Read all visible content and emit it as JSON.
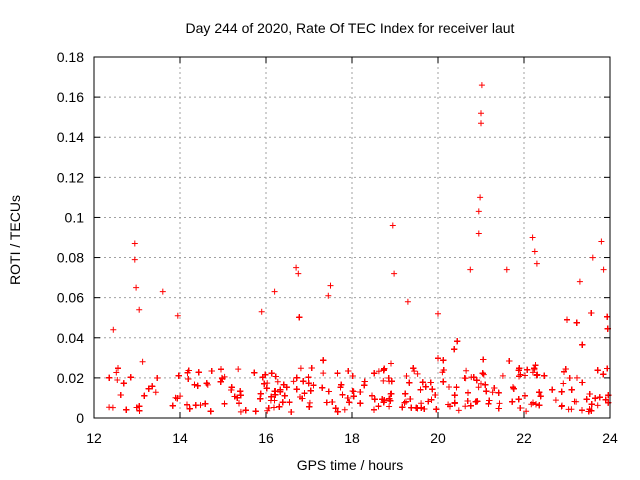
{
  "chart_data": {
    "type": "scatter",
    "title": "Day 244 of 2020, Rate Of TEC Index for receiver laut",
    "xlabel": "GPS time / hours",
    "ylabel": "ROTI / TECUs",
    "xlim": [
      12,
      24
    ],
    "ylim": [
      0,
      0.18
    ],
    "xticks": [
      12,
      14,
      16,
      18,
      20,
      22,
      24
    ],
    "yticks": [
      0,
      0.02,
      0.04,
      0.06,
      0.08,
      0.1,
      0.12,
      0.14,
      0.16,
      0.18
    ],
    "ytick_labels": [
      "0",
      "0.02",
      "0.04",
      "0.06",
      "0.08",
      "0.1",
      "0.12",
      "0.14",
      "0.16",
      "0.18"
    ],
    "grid": true,
    "marker": "+",
    "color": "#ff0000",
    "x_start": 12.35,
    "x_end": 24.0,
    "baseline_level": 0.012,
    "notable_points": [
      {
        "x": 12.45,
        "y": 0.044
      },
      {
        "x": 12.95,
        "y": 0.087
      },
      {
        "x": 12.95,
        "y": 0.079
      },
      {
        "x": 12.98,
        "y": 0.065
      },
      {
        "x": 13.05,
        "y": 0.054
      },
      {
        "x": 13.6,
        "y": 0.063
      },
      {
        "x": 13.95,
        "y": 0.051
      },
      {
        "x": 15.9,
        "y": 0.053
      },
      {
        "x": 16.2,
        "y": 0.063
      },
      {
        "x": 16.7,
        "y": 0.075
      },
      {
        "x": 16.75,
        "y": 0.072
      },
      {
        "x": 17.5,
        "y": 0.066
      },
      {
        "x": 17.45,
        "y": 0.061
      },
      {
        "x": 18.95,
        "y": 0.096
      },
      {
        "x": 18.98,
        "y": 0.072
      },
      {
        "x": 19.3,
        "y": 0.058
      },
      {
        "x": 20.0,
        "y": 0.052
      },
      {
        "x": 20.75,
        "y": 0.074
      },
      {
        "x": 20.95,
        "y": 0.103
      },
      {
        "x": 20.95,
        "y": 0.092
      },
      {
        "x": 20.98,
        "y": 0.11
      },
      {
        "x": 21.0,
        "y": 0.147
      },
      {
        "x": 21.0,
        "y": 0.152
      },
      {
        "x": 21.02,
        "y": 0.166
      },
      {
        "x": 21.6,
        "y": 0.074
      },
      {
        "x": 22.2,
        "y": 0.09
      },
      {
        "x": 22.25,
        "y": 0.083
      },
      {
        "x": 22.3,
        "y": 0.077
      },
      {
        "x": 23.3,
        "y": 0.068
      },
      {
        "x": 23.6,
        "y": 0.08
      },
      {
        "x": 23.8,
        "y": 0.088
      },
      {
        "x": 23.85,
        "y": 0.074
      }
    ]
  }
}
